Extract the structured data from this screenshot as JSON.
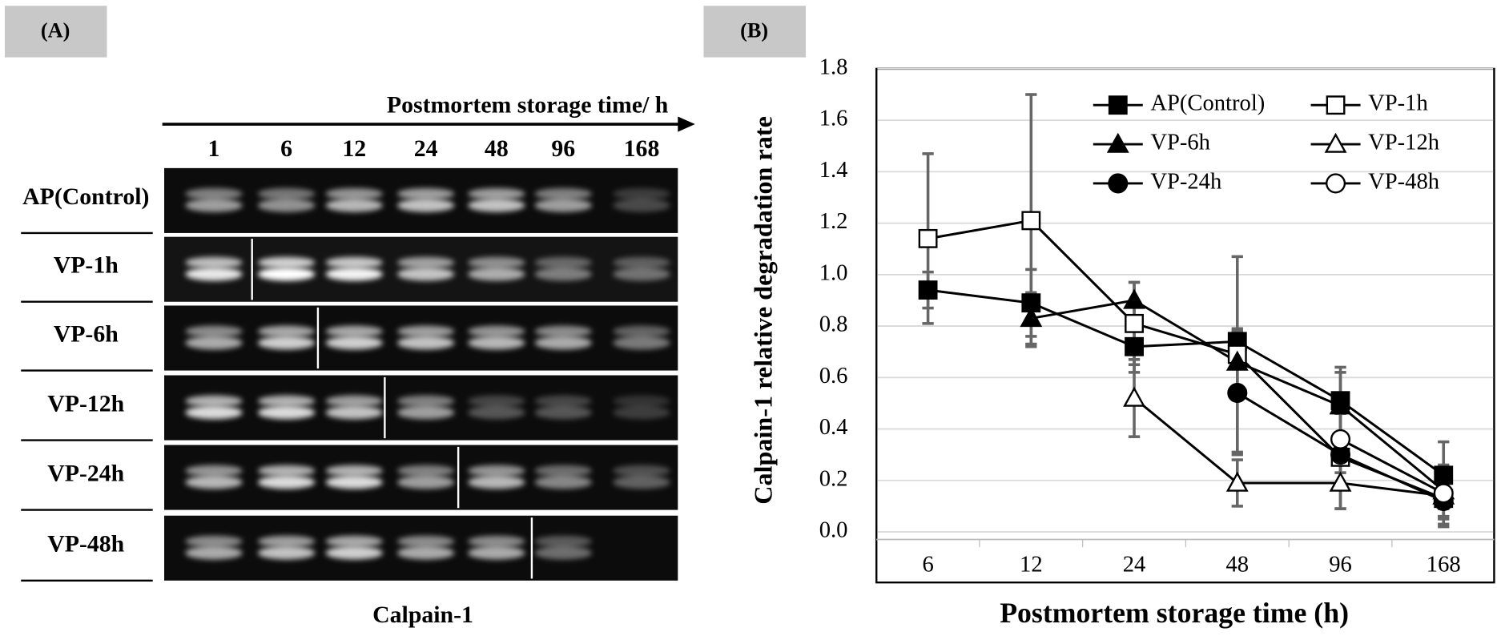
{
  "panel_a": {
    "label": "(A)",
    "axis_title": "Postmortem storage time/ h",
    "lanes": [
      "1",
      "6",
      "12",
      "24",
      "48",
      "96",
      "168"
    ],
    "rows": [
      "AP(Control)",
      "VP-1h",
      "VP-6h",
      "VP-12h",
      "VP-24h",
      "VP-48h"
    ],
    "caption": "Calpain-1"
  },
  "chart_data": {
    "type": "line",
    "panel_label": "(B)",
    "xlabel": "Postmortem storage time (h)",
    "ylabel": "Calpain-1 relative degradation rate",
    "categories": [
      "6",
      "12",
      "24",
      "48",
      "96",
      "168"
    ],
    "ylim": [
      0,
      1.8
    ],
    "yticks": [
      {
        "value": 0,
        "label": "0.0"
      },
      0.2,
      0.4,
      0.6,
      0.8,
      {
        "value": 1,
        "label": "1.0"
      },
      1.2,
      1.4,
      1.6,
      1.8
    ],
    "grid": true,
    "legend": "top",
    "series": [
      {
        "name": "AP(Control)",
        "color": "#000000",
        "marker": "square",
        "filled": true,
        "values": [
          0.94,
          0.89,
          0.72,
          0.74,
          0.51,
          0.22
        ],
        "errors": [
          0.07,
          0.13,
          0.1,
          0.05,
          0.13,
          0.13
        ]
      },
      {
        "name": "VP-1h",
        "color": "#000000",
        "marker": "square",
        "filled": false,
        "values": [
          1.14,
          1.21,
          0.81,
          0.69,
          0.29,
          0.13
        ],
        "errors": [
          0.33,
          0.49,
          0.16,
          0.38,
          0.2,
          0.1
        ]
      },
      {
        "name": "VP-6h",
        "color": "#000000",
        "marker": "triangle",
        "filled": true,
        "values": [
          null,
          0.83,
          0.9,
          0.66,
          0.49,
          0.16
        ],
        "errors": [
          null,
          0.1,
          0.07,
          0.12,
          0.13,
          0.1
        ]
      },
      {
        "name": "VP-12h",
        "color": "#000000",
        "marker": "triangle",
        "filled": false,
        "values": [
          null,
          null,
          0.52,
          0.19,
          0.19,
          0.14
        ],
        "errors": [
          null,
          null,
          0.15,
          0.09,
          0.1,
          0.08
        ]
      },
      {
        "name": "VP-24h",
        "color": "#000000",
        "marker": "circle",
        "filled": true,
        "values": [
          null,
          null,
          null,
          0.54,
          0.3,
          0.12
        ],
        "errors": [
          null,
          null,
          null,
          0.24,
          0.07,
          0.1
        ]
      },
      {
        "name": "VP-48h",
        "color": "#000000",
        "marker": "circle",
        "filled": false,
        "values": [
          null,
          null,
          null,
          null,
          0.36,
          0.15
        ],
        "errors": [
          null,
          null,
          null,
          null,
          0.1,
          0.1
        ]
      }
    ]
  }
}
